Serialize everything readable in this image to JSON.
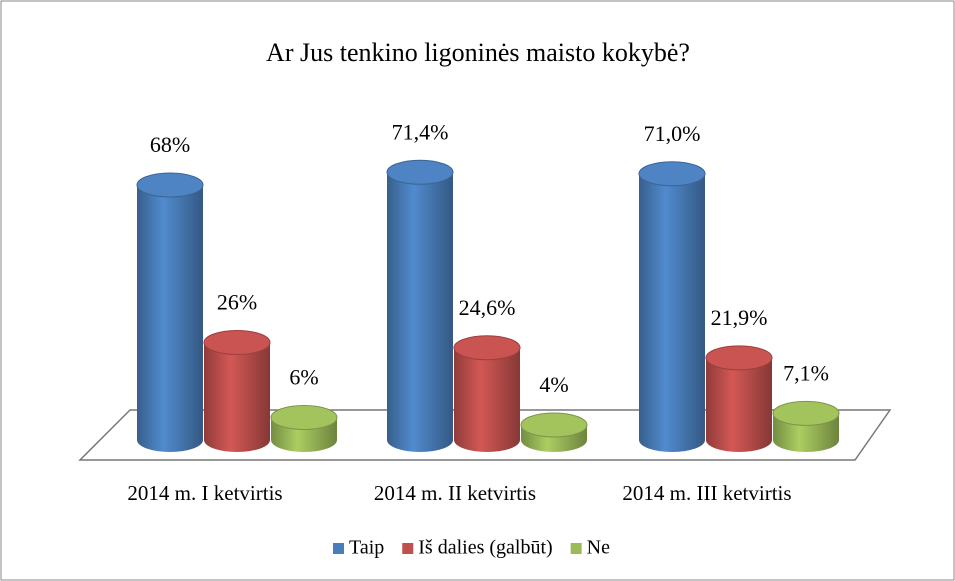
{
  "chart_data": {
    "type": "bar3d",
    "title": "Ar Jus tenkino ligoninės maisto kokybė?",
    "categories": [
      "2014 m. I ketvirtis",
      "2014 m. II ketvirtis",
      "2014 m. III ketvirtis"
    ],
    "series": [
      {
        "name": "Taip",
        "color": "#4a7ebb",
        "values": [
          68,
          71.4,
          71.0
        ],
        "value_labels": [
          "68%",
          "71,4%",
          "71,0%"
        ]
      },
      {
        "name": "Iš dalies (galbūt)",
        "color": "#c0504d",
        "values": [
          26,
          24.6,
          21.9
        ],
        "value_labels": [
          "26%",
          "24,6%",
          "21,9%"
        ]
      },
      {
        "name": "Ne",
        "color": "#9bbb59",
        "values": [
          6,
          4,
          7.1
        ],
        "value_labels": [
          "6%",
          "4%",
          "7,1%"
        ]
      }
    ],
    "legend": "bottom"
  }
}
